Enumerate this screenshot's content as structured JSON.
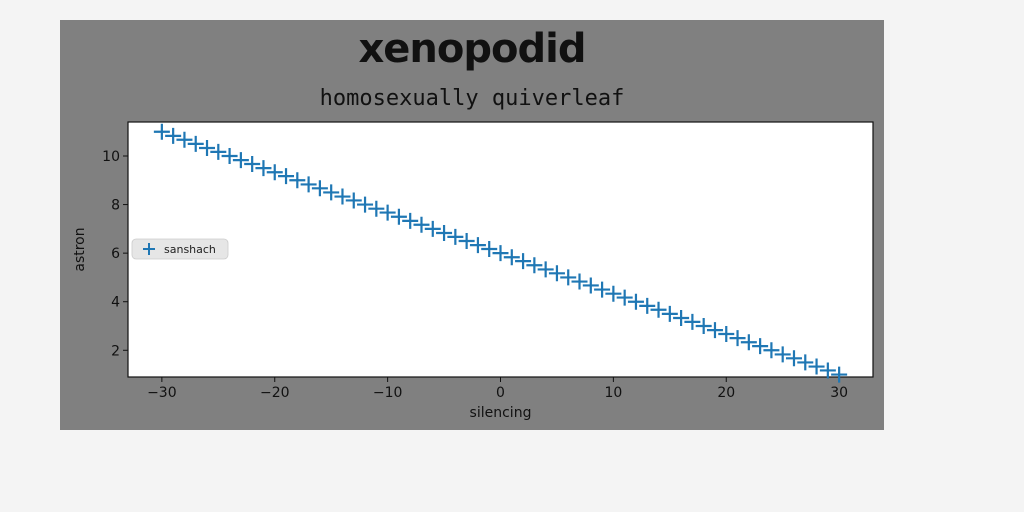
{
  "chart_data": {
    "type": "scatter",
    "title": "xenopodid",
    "subtitle": "homosexually quiverleaf",
    "xlabel": "silencing",
    "ylabel": "astron",
    "xlim": [
      -33,
      33
    ],
    "ylim": [
      0.9,
      11.4
    ],
    "xticks": [
      -30,
      -20,
      -10,
      0,
      10,
      20,
      30
    ],
    "yticks": [
      2,
      4,
      6,
      8,
      10
    ],
    "grid": false,
    "legend_position": "center-left",
    "marker": "plus",
    "series": [
      {
        "name": "sanshach",
        "color": "#1f77b4",
        "x": [
          -30,
          -29,
          -28,
          -27,
          -26,
          -25,
          -24,
          -23,
          -22,
          -21,
          -20,
          -19,
          -18,
          -17,
          -16,
          -15,
          -14,
          -13,
          -12,
          -11,
          -10,
          -9,
          -8,
          -7,
          -6,
          -5,
          -4,
          -3,
          -2,
          -1,
          0,
          1,
          2,
          3,
          4,
          5,
          6,
          7,
          8,
          9,
          10,
          11,
          12,
          13,
          14,
          15,
          16,
          17,
          18,
          19,
          20,
          21,
          22,
          23,
          24,
          25,
          26,
          27,
          28,
          29,
          30
        ],
        "y": [
          11.0,
          10.83,
          10.67,
          10.5,
          10.33,
          10.17,
          10.0,
          9.83,
          9.67,
          9.5,
          9.33,
          9.17,
          9.0,
          8.83,
          8.67,
          8.5,
          8.33,
          8.17,
          8.0,
          7.83,
          7.67,
          7.5,
          7.33,
          7.17,
          7.0,
          6.83,
          6.67,
          6.5,
          6.33,
          6.17,
          6.0,
          5.83,
          5.67,
          5.5,
          5.33,
          5.17,
          5.0,
          4.83,
          4.67,
          4.5,
          4.33,
          4.17,
          4.0,
          3.83,
          3.67,
          3.5,
          3.33,
          3.17,
          3.0,
          2.83,
          2.67,
          2.5,
          2.33,
          2.17,
          2.0,
          1.83,
          1.67,
          1.5,
          1.33,
          1.17,
          1.0
        ]
      }
    ]
  }
}
